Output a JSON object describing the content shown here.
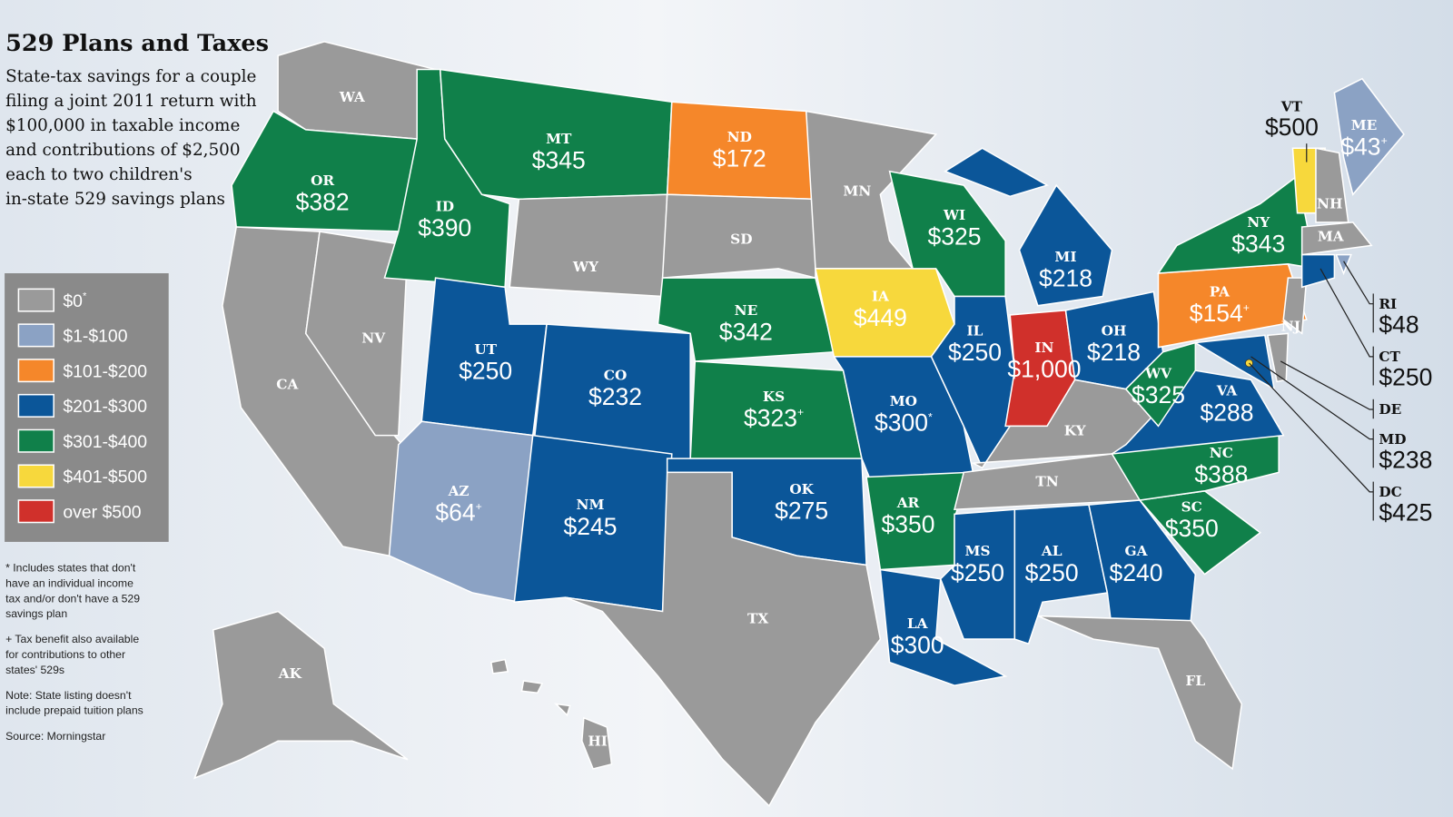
{
  "header": {
    "title": "529 Plans and Taxes",
    "subtitle": [
      "State-tax savings for a couple",
      "filing a joint 2011 return with",
      "$100,000 in taxable income",
      "and contributions of $2,500",
      "each to two children's",
      "in-state 529 savings plans"
    ]
  },
  "legend": [
    {
      "label": "$0",
      "sup": "*",
      "color": "#9a9a9a"
    },
    {
      "label": "$1-$100",
      "color": "#8ba2c4"
    },
    {
      "label": "$101-$200",
      "color": "#f5872a"
    },
    {
      "label": "$201-$300",
      "color": "#0b5699"
    },
    {
      "label": "$301-$400",
      "color": "#10804a"
    },
    {
      "label": "$401-$500",
      "color": "#f7d83c"
    },
    {
      "label": "over $500",
      "color": "#d0302b"
    }
  ],
  "notes": [
    [
      "* Includes states that don't",
      "have an individual income",
      "tax and/or don't have a 529",
      "savings plan"
    ],
    [
      "+ Tax benefit also available",
      "for contributions to other",
      "states' 529s"
    ],
    [
      "Note: State listing doesn't",
      "include prepaid tuition plans"
    ],
    [
      "Source: Morningstar"
    ]
  ],
  "states": [
    {
      "abbr": "WA",
      "color": "#9a9a9a"
    },
    {
      "abbr": "OR",
      "amount": "$382",
      "color": "#10804a"
    },
    {
      "abbr": "CA",
      "color": "#9a9a9a"
    },
    {
      "abbr": "NV",
      "color": "#9a9a9a"
    },
    {
      "abbr": "ID",
      "amount": "$390",
      "color": "#10804a"
    },
    {
      "abbr": "MT",
      "amount": "$345",
      "color": "#10804a"
    },
    {
      "abbr": "WY",
      "color": "#9a9a9a"
    },
    {
      "abbr": "UT",
      "amount": "$250",
      "color": "#0b5699"
    },
    {
      "abbr": "CO",
      "amount": "$232",
      "color": "#0b5699"
    },
    {
      "abbr": "AZ",
      "amount": "$64",
      "sup": "+",
      "color": "#8ba2c4"
    },
    {
      "abbr": "NM",
      "amount": "$245",
      "color": "#0b5699"
    },
    {
      "abbr": "ND",
      "amount": "$172",
      "color": "#f5872a"
    },
    {
      "abbr": "SD",
      "color": "#9a9a9a"
    },
    {
      "abbr": "NE",
      "amount": "$342",
      "color": "#10804a"
    },
    {
      "abbr": "KS",
      "amount": "$323",
      "sup": "+",
      "color": "#10804a"
    },
    {
      "abbr": "OK",
      "amount": "$275",
      "color": "#0b5699"
    },
    {
      "abbr": "TX",
      "color": "#9a9a9a"
    },
    {
      "abbr": "MN",
      "color": "#9a9a9a"
    },
    {
      "abbr": "IA",
      "amount": "$449",
      "color": "#f7d83c"
    },
    {
      "abbr": "MO",
      "amount": "$300",
      "sup": "*",
      "color": "#0b5699"
    },
    {
      "abbr": "AR",
      "amount": "$350",
      "color": "#10804a"
    },
    {
      "abbr": "LA",
      "amount": "$300",
      "color": "#0b5699"
    },
    {
      "abbr": "WI",
      "amount": "$325",
      "color": "#10804a"
    },
    {
      "abbr": "IL",
      "amount": "$250",
      "color": "#0b5699"
    },
    {
      "abbr": "MI",
      "amount": "$218",
      "color": "#0b5699"
    },
    {
      "abbr": "IN",
      "amount": "$1,000",
      "color": "#d0302b"
    },
    {
      "abbr": "OH",
      "amount": "$218",
      "color": "#0b5699"
    },
    {
      "abbr": "KY",
      "color": "#9a9a9a"
    },
    {
      "abbr": "TN",
      "color": "#9a9a9a"
    },
    {
      "abbr": "MS",
      "amount": "$250",
      "color": "#0b5699"
    },
    {
      "abbr": "AL",
      "amount": "$250",
      "color": "#0b5699"
    },
    {
      "abbr": "GA",
      "amount": "$240",
      "color": "#0b5699"
    },
    {
      "abbr": "FL",
      "color": "#9a9a9a"
    },
    {
      "abbr": "SC",
      "amount": "$350",
      "color": "#10804a"
    },
    {
      "abbr": "NC",
      "amount": "$388",
      "color": "#10804a"
    },
    {
      "abbr": "VA",
      "amount": "$288",
      "color": "#0b5699"
    },
    {
      "abbr": "WV",
      "amount": "$325",
      "color": "#10804a"
    },
    {
      "abbr": "PA",
      "amount": "$154",
      "sup": "+",
      "color": "#f5872a"
    },
    {
      "abbr": "NY",
      "amount": "$343",
      "color": "#10804a"
    },
    {
      "abbr": "NJ",
      "color": "#9a9a9a"
    },
    {
      "abbr": "MD",
      "amount": "$238",
      "color": "#0b5699"
    },
    {
      "abbr": "DE",
      "color": "#9a9a9a"
    },
    {
      "abbr": "VT",
      "amount": "$500",
      "color": "#f7d83c"
    },
    {
      "abbr": "NH",
      "color": "#9a9a9a"
    },
    {
      "abbr": "ME",
      "amount": "$43",
      "sup": "+",
      "color": "#8ba2c4"
    },
    {
      "abbr": "MA",
      "color": "#9a9a9a"
    },
    {
      "abbr": "CT",
      "amount": "$250",
      "color": "#0b5699"
    },
    {
      "abbr": "RI",
      "amount": "$48",
      "color": "#8ba2c4"
    },
    {
      "abbr": "DC",
      "amount": "$425",
      "color": "#f7d83c"
    },
    {
      "abbr": "AK",
      "color": "#9a9a9a"
    },
    {
      "abbr": "HI",
      "color": "#9a9a9a"
    }
  ]
}
